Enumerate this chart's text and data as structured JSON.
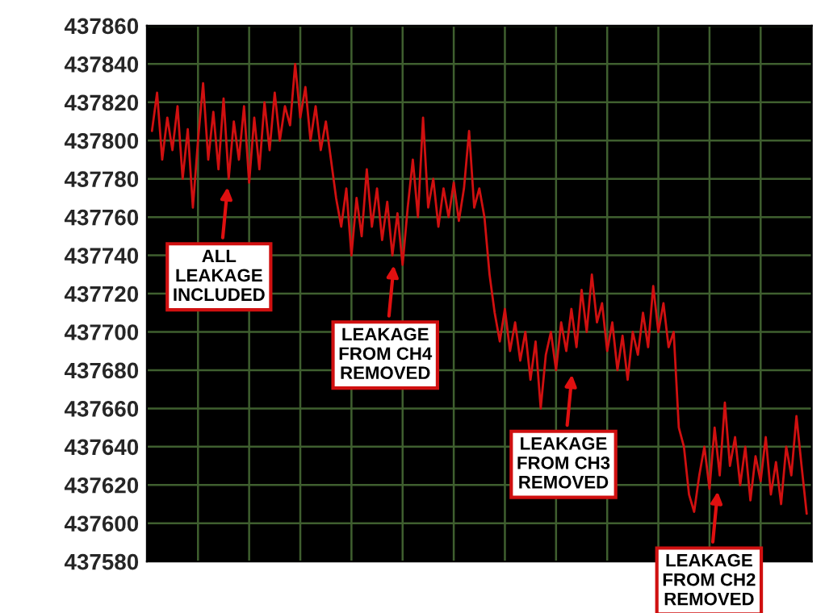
{
  "chart_data": {
    "type": "line",
    "color": "#d01010",
    "grid": true,
    "tick_labels": "y",
    "ylim": [
      437580,
      437860
    ],
    "yticks": [
      437580,
      437600,
      437620,
      437640,
      437660,
      437680,
      437700,
      437720,
      437740,
      437760,
      437780,
      437800,
      437820,
      437840,
      437860
    ],
    "categories": [
      null,
      null,
      null,
      null,
      null,
      null,
      null,
      null,
      null,
      null,
      null,
      null,
      null,
      null,
      null,
      null,
      null,
      null,
      null,
      null,
      null,
      null,
      null,
      null,
      null,
      null,
      null,
      null,
      null,
      null,
      null,
      null,
      null,
      null,
      null,
      null,
      null,
      null,
      null,
      null,
      null,
      null,
      null,
      null,
      null,
      null,
      null,
      null,
      null,
      null,
      null,
      null,
      null,
      null,
      null,
      null,
      null,
      null,
      null,
      null,
      null,
      null,
      null,
      null,
      null,
      null,
      null,
      null,
      null,
      null,
      null,
      null,
      null,
      null,
      null,
      null,
      null,
      null,
      null,
      null,
      null,
      null,
      null,
      null,
      null,
      null,
      null,
      null,
      null,
      null,
      null,
      null,
      null,
      null,
      null,
      null,
      null,
      null,
      null,
      null,
      null,
      null,
      null,
      null,
      null,
      null,
      null,
      null,
      null,
      null,
      null,
      null,
      null,
      null,
      null,
      null,
      null,
      null,
      null,
      null,
      null,
      null,
      null,
      null,
      null,
      null,
      null,
      null,
      null
    ],
    "values": [
      437805,
      437825,
      437790,
      437812,
      437795,
      437818,
      437780,
      437806,
      437765,
      437800,
      437830,
      437790,
      437815,
      437785,
      437822,
      437780,
      437810,
      437790,
      437818,
      437778,
      437812,
      437785,
      437820,
      437795,
      437825,
      437800,
      437818,
      437808,
      437840,
      437812,
      437828,
      437800,
      437818,
      437795,
      437810,
      437790,
      437770,
      437755,
      437775,
      437740,
      437770,
      437750,
      437785,
      437755,
      437775,
      437748,
      437768,
      437740,
      437762,
      437735,
      437765,
      437790,
      437760,
      437812,
      437765,
      437780,
      437755,
      437775,
      437760,
      437778,
      437758,
      437775,
      437805,
      437765,
      437775,
      437760,
      437730,
      437710,
      437695,
      437712,
      437690,
      437705,
      437685,
      437700,
      437675,
      437695,
      437660,
      437688,
      437700,
      437680,
      437705,
      437690,
      437712,
      437692,
      437722,
      437700,
      437730,
      437705,
      437715,
      437690,
      437705,
      437680,
      437698,
      437675,
      437700,
      437688,
      437710,
      437692,
      437724,
      437700,
      437715,
      437692,
      437700,
      437650,
      437640,
      437615,
      437606,
      437625,
      437640,
      437618,
      437650,
      437625,
      437663,
      437630,
      437645,
      437620,
      437640,
      437612,
      437635,
      437622,
      437645,
      437615,
      437632,
      437610,
      437640,
      437625,
      437656,
      437630,
      437605
    ],
    "annotations": [
      "ALL\nLEAKAGE\nINCLUDED",
      "LEAKAGE\nFROM CH4\nREMOVED",
      "LEAKAGE\nFROM CH3\nREMOVED",
      "LEAKAGE\nFROM CH2\nREMOVED"
    ]
  }
}
